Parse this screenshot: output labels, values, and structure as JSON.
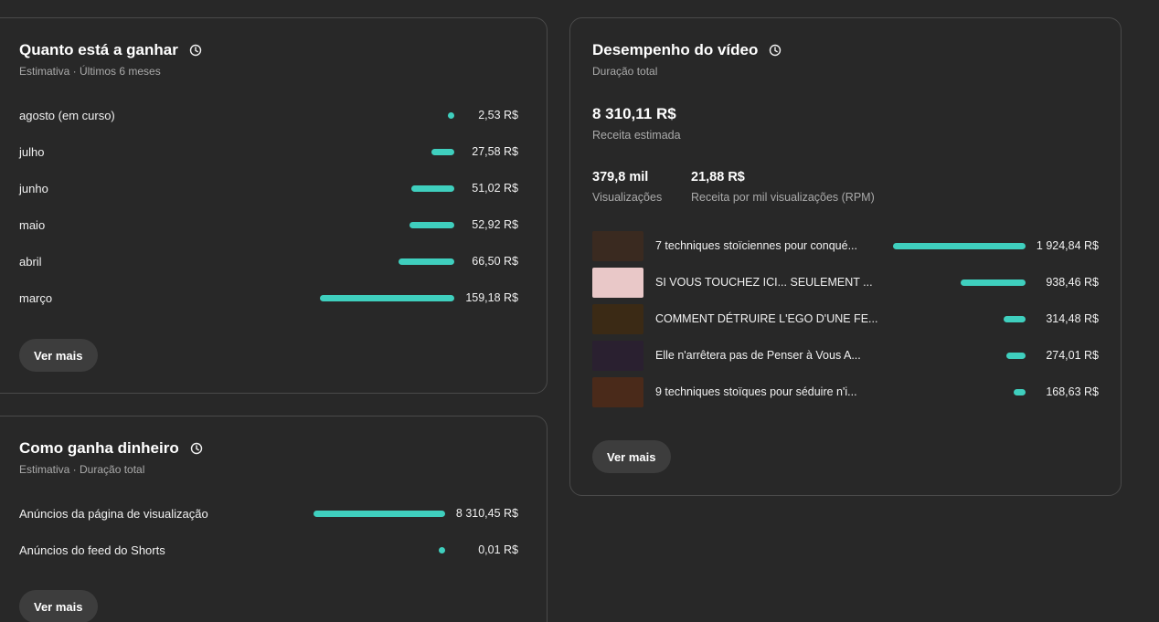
{
  "earnings": {
    "title": "Quanto está a ganhar",
    "subtitle": "Estimativa · Últimos 6 meses",
    "button": "Ver mais",
    "rows": [
      {
        "label": "agosto (em curso)",
        "value": "2,53 R$",
        "amount": 2.53
      },
      {
        "label": "julho",
        "value": "27,58 R$",
        "amount": 27.58
      },
      {
        "label": "junho",
        "value": "51,02 R$",
        "amount": 51.02
      },
      {
        "label": "maio",
        "value": "52,92 R$",
        "amount": 52.92
      },
      {
        "label": "abril",
        "value": "66,50 R$",
        "amount": 66.5
      },
      {
        "label": "março",
        "value": "159,18 R$",
        "amount": 159.18
      }
    ]
  },
  "how": {
    "title": "Como ganha dinheiro",
    "subtitle": "Estimativa · Duração total",
    "button": "Ver mais",
    "rows": [
      {
        "label": "Anúncios da página de visualização",
        "value": "8 310,45 R$",
        "amount": 8310.45
      },
      {
        "label": "Anúncios do feed do Shorts",
        "value": "0,01 R$",
        "amount": 0.01
      }
    ]
  },
  "video": {
    "title": "Desempenho do vídeo",
    "subtitle": "Duração total",
    "revenue": "8 310,11 R$",
    "revenue_label": "Receita estimada",
    "views": "379,8 mil",
    "views_label": "Visualizações",
    "rpm": "21,88 R$",
    "rpm_label": "Receita por mil visualizações (RPM)",
    "button": "Ver mais",
    "items": [
      {
        "title": "7 techniques stoïciennes pour conqué...",
        "value": "1 924,84 R$",
        "amount": 1924.84,
        "thumb": "#3a2a20"
      },
      {
        "title": "SI VOUS TOUCHEZ ICI... SEULEMENT ...",
        "value": "938,46 R$",
        "amount": 938.46,
        "thumb": "#e9c8c8"
      },
      {
        "title": "COMMENT DÉTRUIRE L'EGO D'UNE FE...",
        "value": "314,48 R$",
        "amount": 314.48,
        "thumb": "#3b2a15"
      },
      {
        "title": "Elle n'arrêtera pas de Penser à Vous A...",
        "value": "274,01 R$",
        "amount": 274.01,
        "thumb": "#2a2030"
      },
      {
        "title": "9 techniques stoïques pour séduire n'i...",
        "value": "168,63 R$",
        "amount": 168.63,
        "thumb": "#4a2a1a"
      }
    ]
  }
}
